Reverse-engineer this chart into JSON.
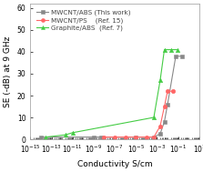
{
  "title": "",
  "xlabel": "Conductivity S/cm",
  "ylabel": "SE (-dB) at 9 GHz",
  "xlim_log": [
    -15,
    1
  ],
  "ylim": [
    0,
    62
  ],
  "yticks": [
    0,
    10,
    20,
    30,
    40,
    50,
    60
  ],
  "series": [
    {
      "label": "MWCNT/ABS (This work)",
      "color": "#888888",
      "marker": "s",
      "x": [
        1e-14,
        1e-09,
        5e-09,
        1e-05,
        0.0005,
        0.002,
        0.005,
        0.01,
        0.06,
        0.25
      ],
      "y": [
        1,
        1,
        1,
        1,
        1,
        2.5,
        8,
        16,
        38,
        38
      ]
    },
    {
      "label": "MWCNT/PS    (Ref. 15)",
      "color": "#ff6666",
      "marker": "o",
      "x": [
        1e-08,
        1e-07,
        1e-06,
        1e-05,
        0.0001,
        0.0005,
        0.002,
        0.005,
        0.01,
        0.03
      ],
      "y": [
        1,
        1,
        1,
        1,
        1,
        1,
        6,
        15,
        22,
        22
      ]
    },
    {
      "label": "Graphite/ABS  (Ref. 7)",
      "color": "#44cc44",
      "marker": "^",
      "x": [
        3e-14,
        2e-12,
        1e-11,
        0.0005,
        0.002,
        0.005,
        0.02,
        0.08
      ],
      "y": [
        1,
        2,
        3,
        10,
        27,
        41,
        41,
        41
      ]
    }
  ],
  "bg_color": "#ffffff",
  "legend_fontsize": 5.2,
  "axis_fontsize": 6.5,
  "tick_fontsize": 5.5
}
